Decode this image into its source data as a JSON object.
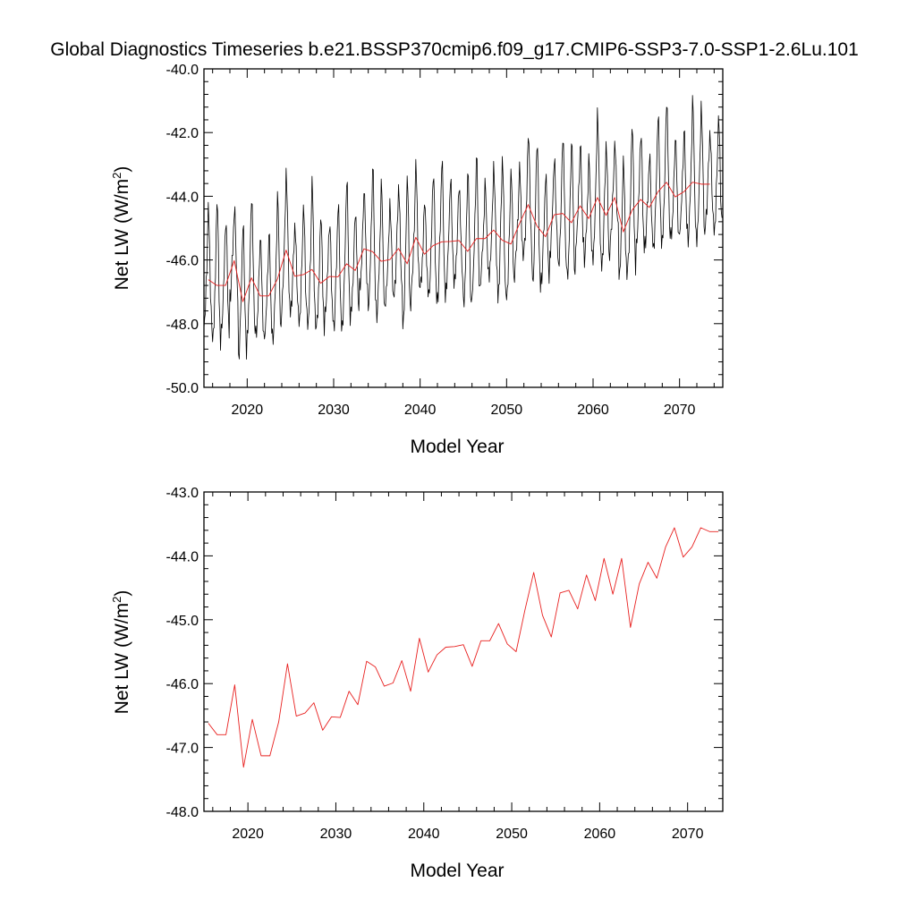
{
  "chart_data": {
    "title": "Global Diagnostics Timeseries b.e21.BSSP370cmip6.f09_g17.CMIP6-SSP3-7.0-SSP1-2.6Lu.101",
    "colors": {
      "monthly": "#000000",
      "annual": "#e8201f"
    },
    "annual": {
      "x": [
        2015.5,
        2016.5,
        2017.5,
        2018.5,
        2019.5,
        2020.5,
        2021.5,
        2022.5,
        2023.5,
        2024.5,
        2025.5,
        2026.5,
        2027.5,
        2028.5,
        2029.5,
        2030.5,
        2031.5,
        2032.5,
        2033.5,
        2034.5,
        2035.5,
        2036.5,
        2037.5,
        2038.5,
        2039.5,
        2040.5,
        2041.5,
        2042.5,
        2043.5,
        2044.5,
        2045.5,
        2046.5,
        2047.5,
        2048.5,
        2049.5,
        2050.5,
        2051.5,
        2052.5,
        2053.5,
        2054.5,
        2055.5,
        2056.5,
        2057.5,
        2058.5,
        2059.5,
        2060.5,
        2061.5,
        2062.5,
        2063.5,
        2064.5,
        2065.5,
        2066.5,
        2067.5,
        2068.5,
        2069.5,
        2070.5,
        2071.5,
        2072.5,
        2073.5
      ],
      "y": [
        -46.62,
        -46.8,
        -46.8,
        -46.02,
        -47.31,
        -46.56,
        -47.13,
        -47.13,
        -46.6,
        -45.69,
        -46.51,
        -46.46,
        -46.3,
        -46.73,
        -46.52,
        -46.53,
        -46.12,
        -46.33,
        -45.65,
        -45.74,
        -46.04,
        -45.99,
        -45.64,
        -46.12,
        -45.29,
        -45.82,
        -45.55,
        -45.43,
        -45.42,
        -45.39,
        -45.73,
        -45.33,
        -45.33,
        -45.06,
        -45.38,
        -45.5,
        -44.85,
        -44.26,
        -44.93,
        -45.27,
        -44.58,
        -44.54,
        -44.83,
        -44.3,
        -44.7,
        -44.04,
        -44.6,
        -44.04,
        -45.12,
        -44.44,
        -44.1,
        -44.35,
        -43.86,
        -43.56,
        -44.02,
        -43.86,
        -43.56,
        -43.62,
        -43.62
      ]
    },
    "monthly": {
      "start_year": 2015,
      "seasonal_cycle": [
        -1.45,
        -1.3,
        -0.9,
        -0.2,
        0.4,
        1.2,
        2.0,
        1.8,
        0.9,
        -0.3,
        -1.0,
        -1.4
      ],
      "anomalies": [
        0.0,
        0.3,
        -0.2,
        0.5,
        -0.4,
        0.2,
        0.6,
        -0.3,
        0.1,
        -0.5,
        0.4,
        -0.1
      ]
    },
    "panels": [
      {
        "ylabel": "Net LW (W/m",
        "ylabel_sup": "2",
        "ylabel_end": ")",
        "xlabel": "Model Year",
        "xlim": [
          2015,
          2075
        ],
        "ylim": [
          -50.0,
          -40.0
        ],
        "yticks": [
          -50.0,
          -48.0,
          -46.0,
          -44.0,
          -42.0,
          -40.0
        ],
        "ytick_labels": [
          "-50.0",
          "-48.0",
          "-46.0",
          "-44.0",
          "-42.0",
          "-40.0"
        ],
        "xticks": [
          2020,
          2030,
          2040,
          2050,
          2060,
          2070
        ],
        "xtick_labels": [
          "2020",
          "2030",
          "2040",
          "2050",
          "2060",
          "2070"
        ],
        "series": [
          "monthly",
          "annual"
        ]
      },
      {
        "ylabel": "Net LW (W/m",
        "ylabel_sup": "2",
        "ylabel_end": ")",
        "xlabel": "Model Year",
        "xlim": [
          2015,
          2074
        ],
        "ylim": [
          -48.0,
          -43.0
        ],
        "yticks": [
          -48.0,
          -47.0,
          -46.0,
          -45.0,
          -44.0,
          -43.0
        ],
        "ytick_labels": [
          "-48.0",
          "-47.0",
          "-46.0",
          "-45.0",
          "-44.0",
          "-43.0"
        ],
        "xticks": [
          2020,
          2030,
          2040,
          2050,
          2060,
          2070
        ],
        "xtick_labels": [
          "2020",
          "2030",
          "2040",
          "2050",
          "2060",
          "2070"
        ],
        "series": [
          "annual"
        ]
      }
    ]
  }
}
